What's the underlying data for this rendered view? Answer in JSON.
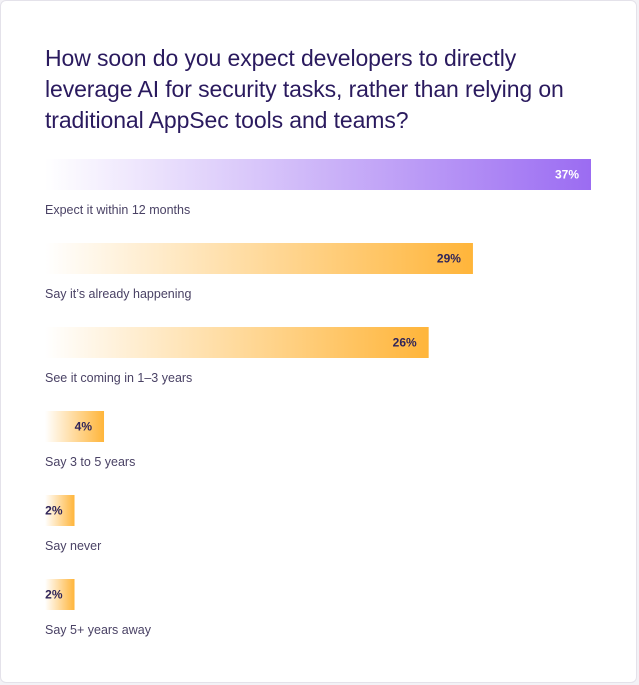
{
  "chart_data": {
    "type": "bar",
    "orientation": "horizontal",
    "title": "How soon do you expect developers to directly leverage AI for security tasks, rather than relying on traditional AppSec tools and teams?",
    "categories": [
      "Expect it within 12 months",
      "Say it’s already happening",
      "See it coming in 1–3 years",
      "Say 3 to 5 years",
      "Say never",
      "Say 5+ years away"
    ],
    "values": [
      37,
      29,
      26,
      4,
      2,
      2
    ],
    "value_labels": [
      "37%",
      "29%",
      "26%",
      "4%",
      "2%",
      "2%"
    ],
    "unit": "%",
    "xlim": [
      0,
      37
    ],
    "highlight_index": 0,
    "colors": {
      "highlight_start": "#ffffff",
      "highlight_end": "#9b6cf2",
      "bar_start": "#ffffff",
      "bar_end": "#ffb53a",
      "highlight_label": "#ffffff",
      "bar_label": "#2f2459"
    }
  }
}
